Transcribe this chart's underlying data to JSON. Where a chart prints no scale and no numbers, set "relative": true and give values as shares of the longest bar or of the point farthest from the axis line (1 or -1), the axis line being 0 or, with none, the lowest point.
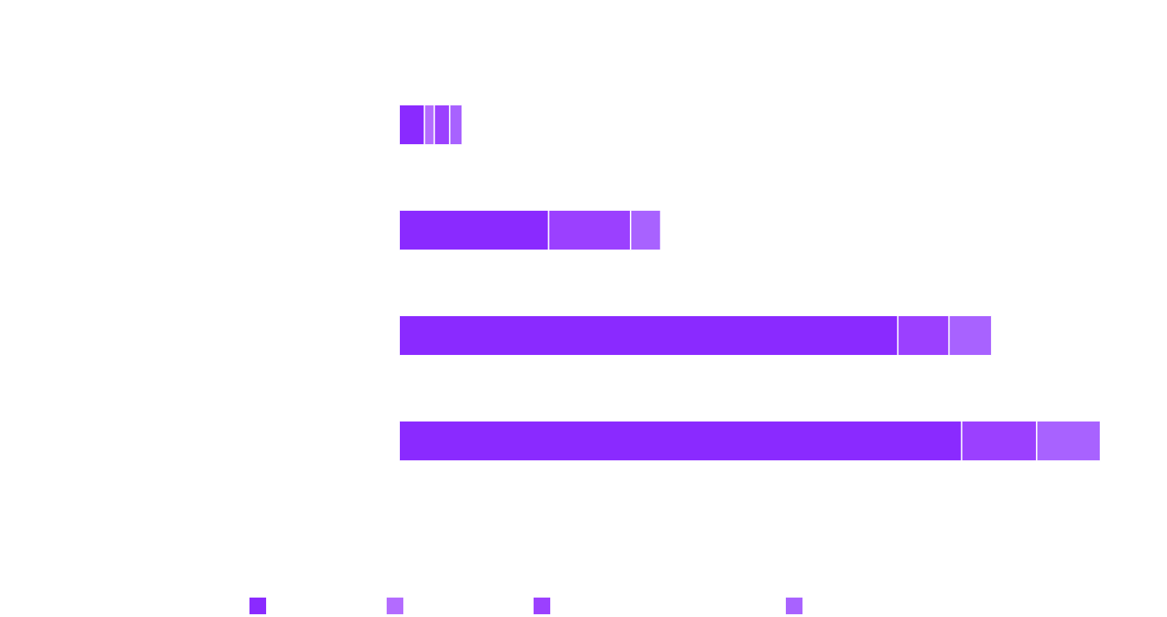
{
  "chart_data": {
    "type": "bar",
    "orientation": "horizontal",
    "stacked": true,
    "relative": true,
    "categories": [
      null,
      null,
      null,
      null
    ],
    "series": [
      {
        "color": "#8a2aff",
        "values": [
          0.036,
          0.213,
          0.711,
          0.802
        ]
      },
      {
        "color": "#b36bff",
        "values": [
          0.014,
          0,
          0,
          0
        ]
      },
      {
        "color": "#9b40ff",
        "values": [
          0.022,
          0.117,
          0.073,
          0.107
        ]
      },
      {
        "color": "#a862ff",
        "values": [
          0.018,
          0.043,
          0.061,
          0.091
        ]
      }
    ]
  }
}
